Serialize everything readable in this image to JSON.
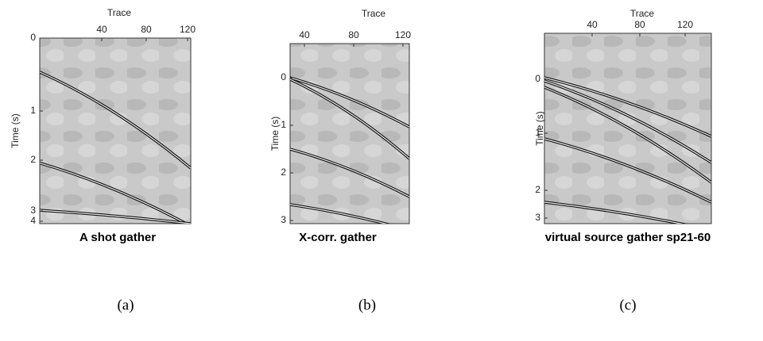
{
  "panels": [
    {
      "x_label": "Trace",
      "y_label": "Time (s)",
      "xticks": [
        40,
        80,
        120
      ],
      "yticks": [
        0,
        1,
        2,
        3,
        4
      ],
      "title": "A shot gather",
      "caption": "(a)"
    },
    {
      "x_label": "Trace",
      "y_label": "Time (s)",
      "xticks": [
        40,
        80,
        120
      ],
      "yticks": [
        0,
        1,
        2,
        3
      ],
      "title": "X-corr. gather",
      "caption": "(b)"
    },
    {
      "x_label": "Trace",
      "y_label": "Time (s)",
      "xticks": [
        40,
        80,
        120
      ],
      "yticks": [
        0,
        1,
        2,
        3
      ],
      "title": "virtual source gather sp21-60",
      "caption": "(c)"
    }
  ]
}
